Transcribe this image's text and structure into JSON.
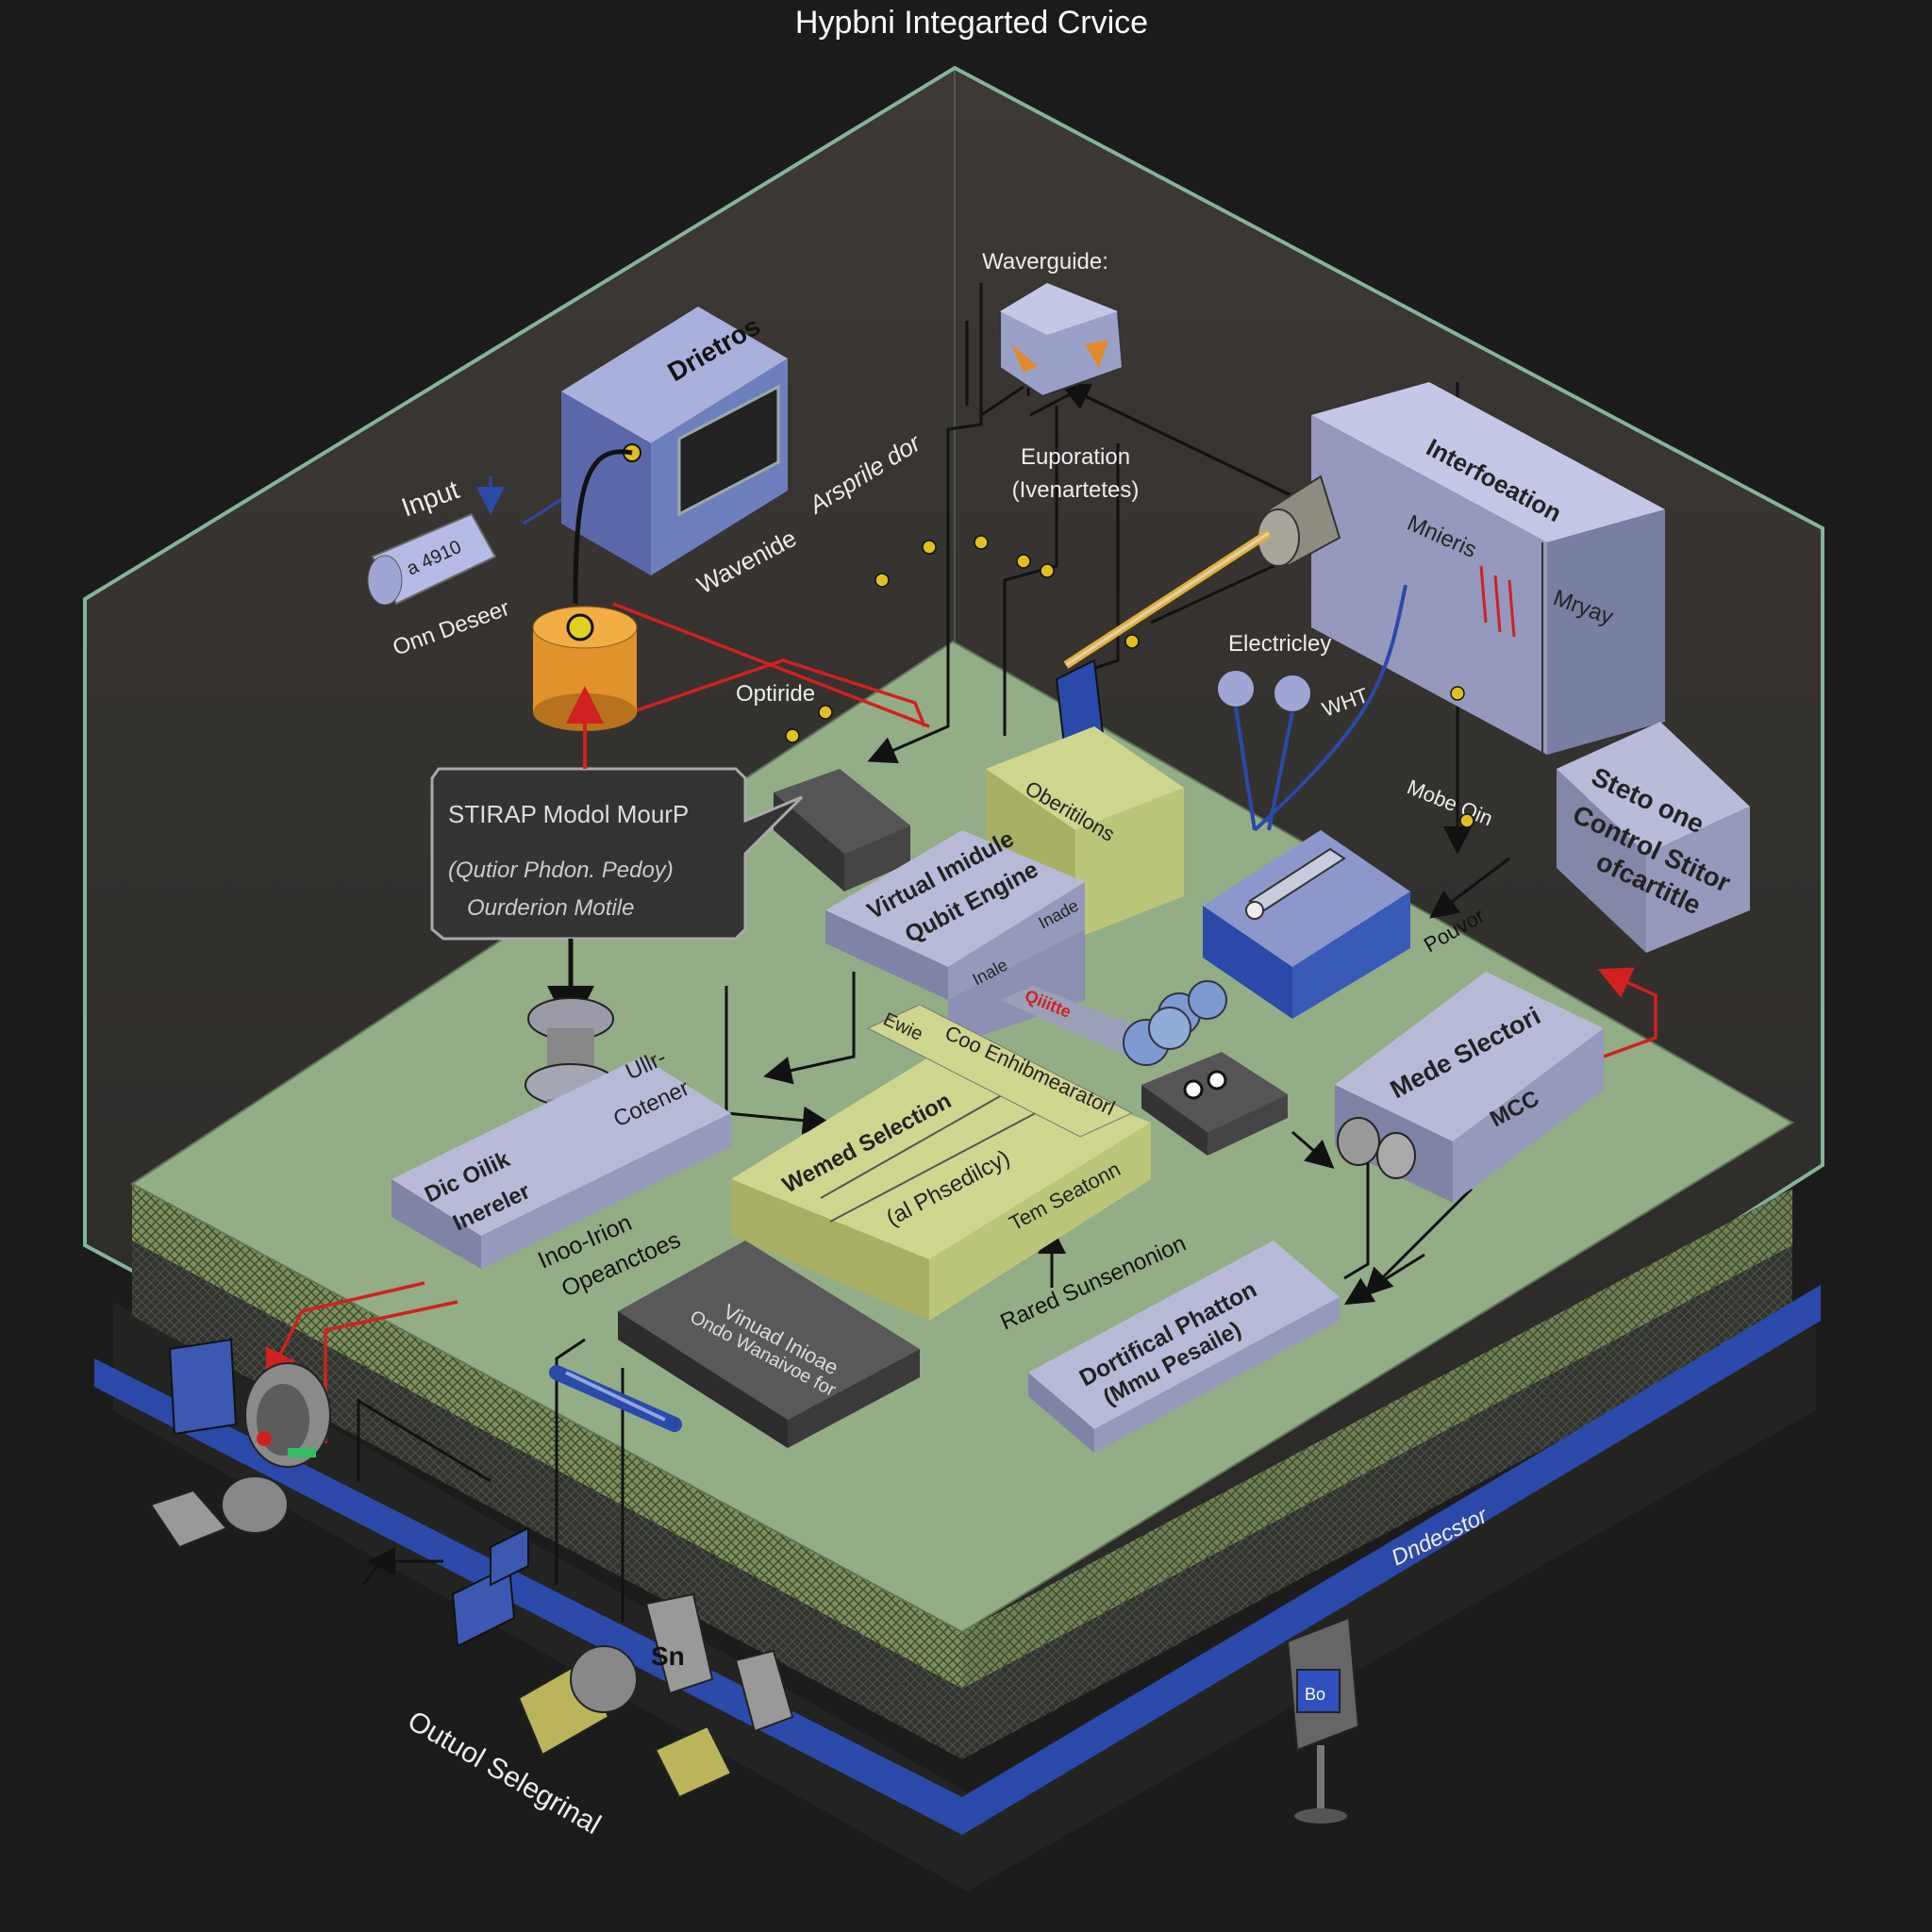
{
  "title": "Hypbni Integarted Crvice",
  "colors": {
    "background": "#1b1b1b",
    "enclosure_edge": "#8fc2a3",
    "board_top": "#93ad86",
    "module_blue": "#6e7fbd",
    "module_gray": "#8f93ab",
    "module_yellow": "#bcc67b",
    "laser_orange": "#e2922a",
    "signal_red": "#d12020",
    "bus_blue": "#2b49a8"
  },
  "labels": {
    "waveguide_top": "Waverguide:",
    "detector_box": "Drietros",
    "input": "Input",
    "input_component": "a 4910",
    "input_sub": "Onn Deseer",
    "waveguide_diag": "Wavenide",
    "arsprile": "Arsprile dor",
    "superposition": "Euporation",
    "superposition_sub": "(Ivenartetes)",
    "interface_box": "Interfoeation",
    "interface_monitor": "Mnieris",
    "interface_side": "Mryay",
    "electricity": "Electricley",
    "wht": "WHT",
    "optimizer": "Optiride",
    "stirap_title": "STIRAP Modol MourP",
    "stirap_sub1": "(Qutior Phdon. Pedoy)",
    "stirap_sub2": "Ourderion Motile",
    "control_state": "Steto one",
    "control_state2": "Control Stitor",
    "control_state3": "ofcartitle",
    "mode_qin": "Mobe Qin",
    "pouvor": "Pouvor",
    "obscurator": "Oberitilons",
    "virtual_engine": "Virtual Imidule",
    "virtual_engine2": "Qubit Engine",
    "engine_side1": "Inale",
    "engine_side2": "Inade",
    "qubits": "Qiiitte",
    "mode_selector": "Mede Slectori",
    "mcc": "MCC",
    "eng_box": "Ewie",
    "coo_bus": "Coo Enhibmearatorl",
    "vertical_selection": "Wemed Selection",
    "probability": "(al Phsedilcy)",
    "tem_selection": "Tem Seatonn",
    "dic_orbit": "Dic Oilik",
    "dic_orbit2": "Inereler",
    "connector": "Ullr-",
    "connector2": "Cotener",
    "inception": "Inoo-Irion",
    "inception2": "Opeanctoes",
    "ranual_superposition": "Rared Sunsenonion",
    "virtual_mode": "Vinuad Inioae",
    "virtual_mode2": "Ondo Wanaivoe for",
    "dortifical_photon": "Dortifical Phatton",
    "dortifical_photon2": "(Mmu Pesaile)",
    "dndecstor": "Dndecstor",
    "sensor_display": "Bo",
    "sn_box": "Sn",
    "output": "Outuol Selegrinal"
  }
}
